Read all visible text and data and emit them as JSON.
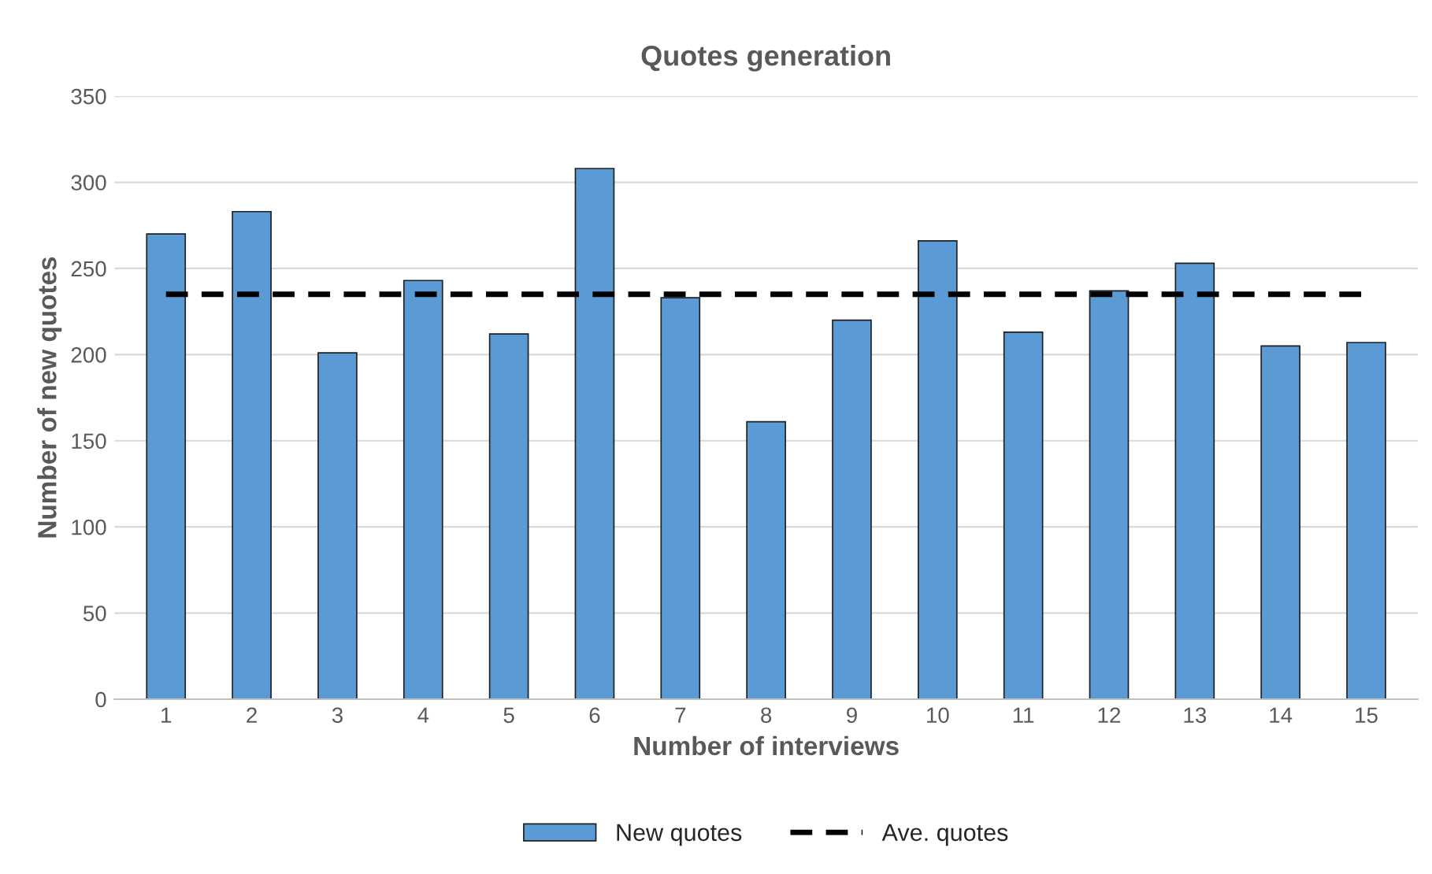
{
  "chart_data": {
    "type": "bar",
    "title": "Quotes generation",
    "xlabel": "Number of interviews",
    "ylabel": "Number of new quotes",
    "categories": [
      "1",
      "2",
      "3",
      "4",
      "5",
      "6",
      "7",
      "8",
      "9",
      "10",
      "11",
      "12",
      "13",
      "14",
      "15"
    ],
    "series": [
      {
        "name": "New quotes",
        "color": "#5b9bd5",
        "values": [
          270,
          283,
          201,
          243,
          212,
          308,
          233,
          161,
          220,
          266,
          213,
          237,
          253,
          205,
          207
        ]
      },
      {
        "name": "Ave. quotes",
        "type": "line",
        "color": "#000000",
        "line_style": "dashed",
        "values": [
          235,
          235,
          235,
          235,
          235,
          235,
          235,
          235,
          235,
          235,
          235,
          235,
          235,
          235,
          235
        ]
      }
    ],
    "ylim": [
      0,
      350
    ],
    "yticks": [
      0,
      50,
      100,
      150,
      200,
      250,
      300,
      350
    ],
    "grid": "y",
    "legend": "bottom"
  }
}
